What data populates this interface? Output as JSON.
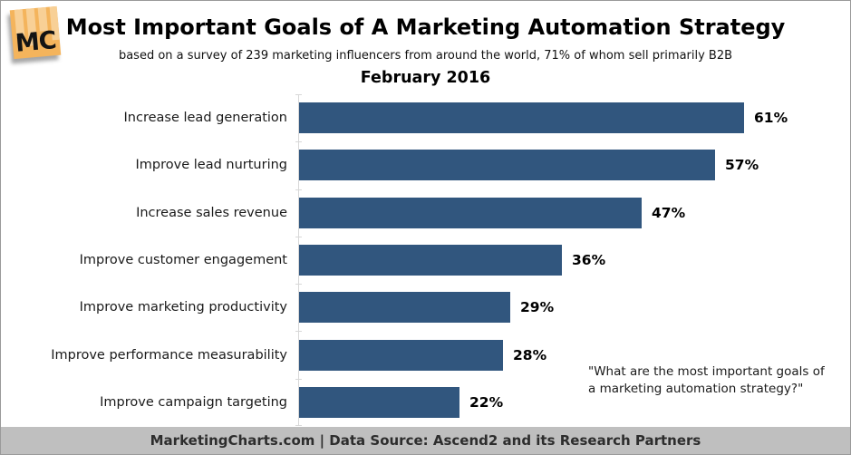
{
  "logo": {
    "text": "MC"
  },
  "header": {
    "title": "Most Important Goals of A Marketing Automation Strategy",
    "subtitle": "based on a survey of 239 marketing influencers from around the world, 71% of whom sell primarily B2B"
  },
  "chart_data": {
    "type": "bar",
    "orientation": "horizontal",
    "title": "February 2016",
    "categories": [
      "Increase lead generation",
      "Improve lead nurturing",
      "Increase sales revenue",
      "Improve customer engagement",
      "Improve marketing productivity",
      "Improve performance measurability",
      "Improve campaign targeting"
    ],
    "values": [
      61,
      57,
      47,
      36,
      29,
      28,
      22
    ],
    "unit": "%",
    "xlim": [
      0,
      70
    ],
    "grid": false,
    "legend": "none",
    "annotation": "\"What are the most important goals of\na marketing automation strategy?\""
  },
  "colors": {
    "bar": "#31567E",
    "logo_orange": "#F4B45C",
    "logo_bar_light": "#F8D096",
    "footer_bg": "#BFBFBF"
  },
  "footer": {
    "text": "MarketingCharts.com | Data Source: Ascend2 and its Research Partners"
  }
}
